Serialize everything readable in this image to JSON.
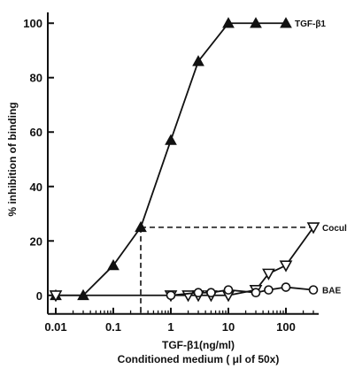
{
  "chart_data": {
    "type": "line",
    "title": "",
    "xlabel_line1": "TGF-β1(ng/ml)",
    "xlabel_line2": "Conditioned medium ( μl of 50x)",
    "ylabel": "% inhibition of binding",
    "x_scale": "log",
    "xlim": [
      0.01,
      1000
    ],
    "ylim": [
      -3,
      103
    ],
    "x_tick_labels": [
      "0.01",
      "0.1",
      "1",
      "10",
      "100"
    ],
    "y_tick_labels": [
      "0",
      "20",
      "40",
      "60",
      "80",
      "100"
    ],
    "grid": false,
    "legend": "labels at series ends",
    "series": [
      {
        "name": "TGF-β1",
        "marker": "filled-triangle",
        "x": [
          0.01,
          0.03,
          0.1,
          0.3,
          1,
          3,
          10,
          30,
          100
        ],
        "y": [
          0,
          0,
          11,
          25,
          57,
          86,
          100,
          100,
          100
        ]
      },
      {
        "name": "Coculture",
        "marker": "open-down-triangle",
        "x": [
          0.01,
          1,
          2,
          3,
          5,
          10,
          30,
          50,
          100,
          300
        ],
        "y": [
          0,
          0,
          0,
          0,
          0,
          0,
          2,
          8,
          11,
          25
        ]
      },
      {
        "name": "BAE",
        "marker": "open-circle",
        "x": [
          1,
          3,
          5,
          10,
          30,
          50,
          100,
          300
        ],
        "y": [
          0,
          1,
          1,
          2,
          1,
          2,
          3,
          2
        ]
      }
    ],
    "dashed_reference": {
      "x": 0.3,
      "y": 25
    }
  }
}
